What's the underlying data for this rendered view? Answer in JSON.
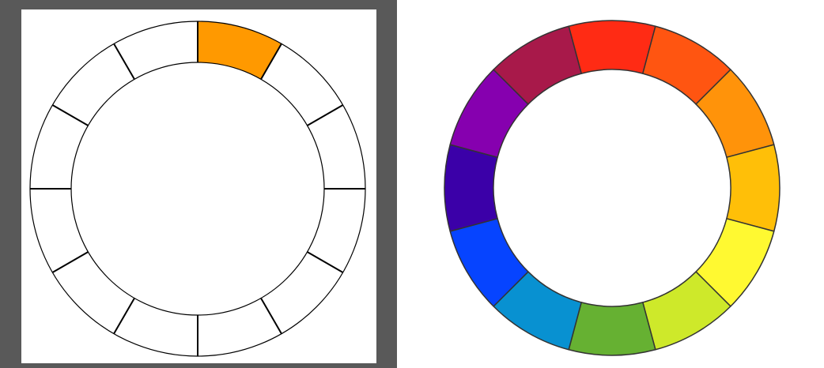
{
  "left_wheel": {
    "segment_count": 12,
    "filled_segment": 0,
    "filled_color": "#FF9900",
    "empty_color": "#FFFFFF",
    "line_color": "#000000",
    "canvas_background": "#595959",
    "artboard_color": "#FFFFFF"
  },
  "right_wheel": {
    "segment_count": 12,
    "outline_color": "#333333",
    "colors": [
      "#FF2B14",
      "#FF5511",
      "#FF930A",
      "#FFBF08",
      "#FFF931",
      "#CEE92A",
      "#66B132",
      "#0891D1",
      "#0644FF",
      "#3B00A8",
      "#8600AF",
      "#A8194A"
    ]
  }
}
